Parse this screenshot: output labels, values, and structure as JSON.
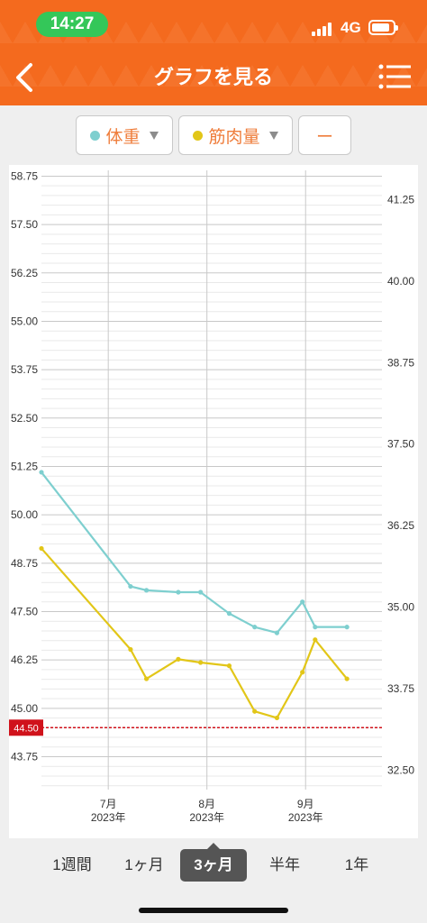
{
  "status_bar": {
    "time": "14:27",
    "network": "4G"
  },
  "nav": {
    "title": "グラフを見る",
    "back_icon": "chevron-left-icon",
    "menu_icon": "list-menu-icon"
  },
  "filters": [
    {
      "label": "体重",
      "color": "#7ecfcf"
    },
    {
      "label": "筋肉量",
      "color": "#e2c618"
    },
    {
      "label": "ー"
    }
  ],
  "colors": {
    "accent": "#f46a1e",
    "weight_line": "#7ecfcf",
    "muscle_line": "#e2c618",
    "target_line": "#d0121b"
  },
  "chart_data": {
    "type": "line",
    "x_range": [
      "2023-06-10",
      "2023-09-25"
    ],
    "x_ticks": [
      {
        "date": "2023-07-01",
        "month": "7月",
        "year": "2023年"
      },
      {
        "date": "2023-08-01",
        "month": "8月",
        "year": "2023年"
      },
      {
        "date": "2023-09-01",
        "month": "9月",
        "year": "2023年"
      }
    ],
    "y_left": {
      "range": [
        42.9,
        58.9
      ],
      "ticks": [
        "58.75",
        "57.50",
        "56.25",
        "55.00",
        "53.75",
        "52.50",
        "51.25",
        "50.00",
        "48.75",
        "47.50",
        "46.25",
        "45.00",
        "43.75"
      ]
    },
    "y_right": {
      "range": [
        32.2,
        41.7
      ],
      "ticks": [
        "41.25",
        "40.00",
        "38.75",
        "37.50",
        "36.25",
        "35.00",
        "33.75",
        "32.50"
      ]
    },
    "grid": true,
    "target": {
      "value": 44.5,
      "label": "44.50"
    },
    "series": [
      {
        "name": "体重",
        "axis": "left",
        "points": [
          [
            "2023-06-10",
            51.1
          ],
          [
            "2023-07-08",
            48.15
          ],
          [
            "2023-07-13",
            48.05
          ],
          [
            "2023-07-23",
            48.0
          ],
          [
            "2023-07-30",
            48.0
          ],
          [
            "2023-08-08",
            47.45
          ],
          [
            "2023-08-16",
            47.1
          ],
          [
            "2023-08-23",
            46.95
          ],
          [
            "2023-08-31",
            47.75
          ],
          [
            "2023-09-04",
            47.1
          ],
          [
            "2023-09-14",
            47.1
          ]
        ]
      },
      {
        "name": "筋肉量",
        "axis": "right",
        "points": [
          [
            "2023-06-10",
            35.9
          ],
          [
            "2023-07-08",
            34.35
          ],
          [
            "2023-07-13",
            33.9
          ],
          [
            "2023-07-23",
            34.2
          ],
          [
            "2023-07-30",
            34.15
          ],
          [
            "2023-08-08",
            34.1
          ],
          [
            "2023-08-16",
            33.4
          ],
          [
            "2023-08-23",
            33.3
          ],
          [
            "2023-08-31",
            34.0
          ],
          [
            "2023-09-04",
            34.5
          ],
          [
            "2023-09-14",
            33.9
          ]
        ]
      }
    ]
  },
  "range_tabs": [
    "1週間",
    "1ヶ月",
    "3ヶ月",
    "半年",
    "1年"
  ],
  "active_range": "3ヶ月"
}
